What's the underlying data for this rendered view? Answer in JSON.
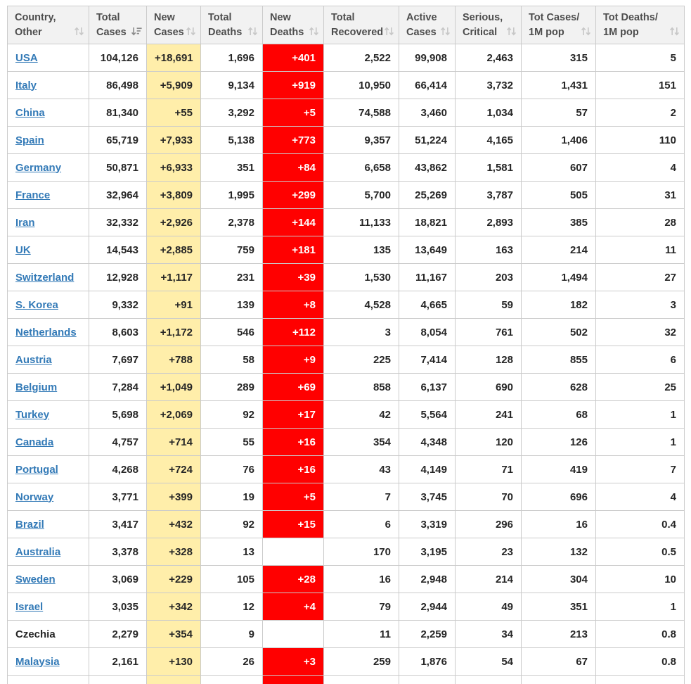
{
  "colors": {
    "new_cases_bg": "#FFEEAA",
    "new_deaths_bg": "#FF0000",
    "new_deaths_text": "#FFFFFF",
    "link": "#337AB7",
    "header_bg": "#F2F2F2",
    "header_text": "#4D4D4D",
    "body_text": "#262626",
    "border": "#CBCBCB"
  },
  "table": {
    "columns": [
      {
        "id": "country",
        "line1": "Country,",
        "line2": "Other",
        "sort": "none",
        "align": "left"
      },
      {
        "id": "total_cases",
        "line1": "Total",
        "line2": "Cases",
        "sort": "desc",
        "align": "right"
      },
      {
        "id": "new_cases",
        "line1": "New",
        "line2": "Cases",
        "sort": "none",
        "align": "right"
      },
      {
        "id": "total_deaths",
        "line1": "Total",
        "line2": "Deaths",
        "sort": "none",
        "align": "right"
      },
      {
        "id": "new_deaths",
        "line1": "New",
        "line2": "Deaths",
        "sort": "none",
        "align": "right"
      },
      {
        "id": "total_recovered",
        "line1": "Total",
        "line2": "Recovered",
        "sort": "none",
        "align": "right"
      },
      {
        "id": "active_cases",
        "line1": "Active",
        "line2": "Cases",
        "sort": "none",
        "align": "right"
      },
      {
        "id": "serious_critical",
        "line1": "Serious,",
        "line2": "Critical",
        "sort": "none",
        "align": "right"
      },
      {
        "id": "cases_per_1m",
        "line1": "Tot Cases/",
        "line2": "1M pop",
        "sort": "none",
        "align": "right"
      },
      {
        "id": "deaths_per_1m",
        "line1": "Tot Deaths/",
        "line2": "1M pop",
        "sort": "none",
        "align": "right"
      }
    ],
    "rows": [
      {
        "country": "USA",
        "is_link": true,
        "total_cases": "104,126",
        "new_cases": "+18,691",
        "total_deaths": "1,696",
        "new_deaths": "+401",
        "total_recovered": "2,522",
        "active_cases": "99,908",
        "serious_critical": "2,463",
        "cases_per_1m": "315",
        "deaths_per_1m": "5"
      },
      {
        "country": "Italy",
        "is_link": true,
        "total_cases": "86,498",
        "new_cases": "+5,909",
        "total_deaths": "9,134",
        "new_deaths": "+919",
        "total_recovered": "10,950",
        "active_cases": "66,414",
        "serious_critical": "3,732",
        "cases_per_1m": "1,431",
        "deaths_per_1m": "151"
      },
      {
        "country": "China",
        "is_link": true,
        "total_cases": "81,340",
        "new_cases": "+55",
        "total_deaths": "3,292",
        "new_deaths": "+5",
        "total_recovered": "74,588",
        "active_cases": "3,460",
        "serious_critical": "1,034",
        "cases_per_1m": "57",
        "deaths_per_1m": "2"
      },
      {
        "country": "Spain",
        "is_link": true,
        "total_cases": "65,719",
        "new_cases": "+7,933",
        "total_deaths": "5,138",
        "new_deaths": "+773",
        "total_recovered": "9,357",
        "active_cases": "51,224",
        "serious_critical": "4,165",
        "cases_per_1m": "1,406",
        "deaths_per_1m": "110"
      },
      {
        "country": "Germany",
        "is_link": true,
        "total_cases": "50,871",
        "new_cases": "+6,933",
        "total_deaths": "351",
        "new_deaths": "+84",
        "total_recovered": "6,658",
        "active_cases": "43,862",
        "serious_critical": "1,581",
        "cases_per_1m": "607",
        "deaths_per_1m": "4"
      },
      {
        "country": "France",
        "is_link": true,
        "total_cases": "32,964",
        "new_cases": "+3,809",
        "total_deaths": "1,995",
        "new_deaths": "+299",
        "total_recovered": "5,700",
        "active_cases": "25,269",
        "serious_critical": "3,787",
        "cases_per_1m": "505",
        "deaths_per_1m": "31"
      },
      {
        "country": "Iran",
        "is_link": true,
        "total_cases": "32,332",
        "new_cases": "+2,926",
        "total_deaths": "2,378",
        "new_deaths": "+144",
        "total_recovered": "11,133",
        "active_cases": "18,821",
        "serious_critical": "2,893",
        "cases_per_1m": "385",
        "deaths_per_1m": "28"
      },
      {
        "country": "UK",
        "is_link": true,
        "total_cases": "14,543",
        "new_cases": "+2,885",
        "total_deaths": "759",
        "new_deaths": "+181",
        "total_recovered": "135",
        "active_cases": "13,649",
        "serious_critical": "163",
        "cases_per_1m": "214",
        "deaths_per_1m": "11"
      },
      {
        "country": "Switzerland",
        "is_link": true,
        "total_cases": "12,928",
        "new_cases": "+1,117",
        "total_deaths": "231",
        "new_deaths": "+39",
        "total_recovered": "1,530",
        "active_cases": "11,167",
        "serious_critical": "203",
        "cases_per_1m": "1,494",
        "deaths_per_1m": "27"
      },
      {
        "country": "S. Korea",
        "is_link": true,
        "total_cases": "9,332",
        "new_cases": "+91",
        "total_deaths": "139",
        "new_deaths": "+8",
        "total_recovered": "4,528",
        "active_cases": "4,665",
        "serious_critical": "59",
        "cases_per_1m": "182",
        "deaths_per_1m": "3"
      },
      {
        "country": "Netherlands",
        "is_link": true,
        "total_cases": "8,603",
        "new_cases": "+1,172",
        "total_deaths": "546",
        "new_deaths": "+112",
        "total_recovered": "3",
        "active_cases": "8,054",
        "serious_critical": "761",
        "cases_per_1m": "502",
        "deaths_per_1m": "32"
      },
      {
        "country": "Austria",
        "is_link": true,
        "total_cases": "7,697",
        "new_cases": "+788",
        "total_deaths": "58",
        "new_deaths": "+9",
        "total_recovered": "225",
        "active_cases": "7,414",
        "serious_critical": "128",
        "cases_per_1m": "855",
        "deaths_per_1m": "6"
      },
      {
        "country": "Belgium",
        "is_link": true,
        "total_cases": "7,284",
        "new_cases": "+1,049",
        "total_deaths": "289",
        "new_deaths": "+69",
        "total_recovered": "858",
        "active_cases": "6,137",
        "serious_critical": "690",
        "cases_per_1m": "628",
        "deaths_per_1m": "25"
      },
      {
        "country": "Turkey",
        "is_link": true,
        "total_cases": "5,698",
        "new_cases": "+2,069",
        "total_deaths": "92",
        "new_deaths": "+17",
        "total_recovered": "42",
        "active_cases": "5,564",
        "serious_critical": "241",
        "cases_per_1m": "68",
        "deaths_per_1m": "1"
      },
      {
        "country": "Canada",
        "is_link": true,
        "total_cases": "4,757",
        "new_cases": "+714",
        "total_deaths": "55",
        "new_deaths": "+16",
        "total_recovered": "354",
        "active_cases": "4,348",
        "serious_critical": "120",
        "cases_per_1m": "126",
        "deaths_per_1m": "1"
      },
      {
        "country": "Portugal",
        "is_link": true,
        "total_cases": "4,268",
        "new_cases": "+724",
        "total_deaths": "76",
        "new_deaths": "+16",
        "total_recovered": "43",
        "active_cases": "4,149",
        "serious_critical": "71",
        "cases_per_1m": "419",
        "deaths_per_1m": "7"
      },
      {
        "country": "Norway",
        "is_link": true,
        "total_cases": "3,771",
        "new_cases": "+399",
        "total_deaths": "19",
        "new_deaths": "+5",
        "total_recovered": "7",
        "active_cases": "3,745",
        "serious_critical": "70",
        "cases_per_1m": "696",
        "deaths_per_1m": "4"
      },
      {
        "country": "Brazil",
        "is_link": true,
        "total_cases": "3,417",
        "new_cases": "+432",
        "total_deaths": "92",
        "new_deaths": "+15",
        "total_recovered": "6",
        "active_cases": "3,319",
        "serious_critical": "296",
        "cases_per_1m": "16",
        "deaths_per_1m": "0.4"
      },
      {
        "country": "Australia",
        "is_link": true,
        "total_cases": "3,378",
        "new_cases": "+328",
        "total_deaths": "13",
        "new_deaths": "",
        "total_recovered": "170",
        "active_cases": "3,195",
        "serious_critical": "23",
        "cases_per_1m": "132",
        "deaths_per_1m": "0.5"
      },
      {
        "country": "Sweden",
        "is_link": true,
        "total_cases": "3,069",
        "new_cases": "+229",
        "total_deaths": "105",
        "new_deaths": "+28",
        "total_recovered": "16",
        "active_cases": "2,948",
        "serious_critical": "214",
        "cases_per_1m": "304",
        "deaths_per_1m": "10"
      },
      {
        "country": "Israel",
        "is_link": true,
        "total_cases": "3,035",
        "new_cases": "+342",
        "total_deaths": "12",
        "new_deaths": "+4",
        "total_recovered": "79",
        "active_cases": "2,944",
        "serious_critical": "49",
        "cases_per_1m": "351",
        "deaths_per_1m": "1"
      },
      {
        "country": "Czechia",
        "is_link": false,
        "total_cases": "2,279",
        "new_cases": "+354",
        "total_deaths": "9",
        "new_deaths": "",
        "total_recovered": "11",
        "active_cases": "2,259",
        "serious_critical": "34",
        "cases_per_1m": "213",
        "deaths_per_1m": "0.8"
      },
      {
        "country": "Malaysia",
        "is_link": true,
        "total_cases": "2,161",
        "new_cases": "+130",
        "total_deaths": "26",
        "new_deaths": "+3",
        "total_recovered": "259",
        "active_cases": "1,876",
        "serious_critical": "54",
        "cases_per_1m": "67",
        "deaths_per_1m": "0.8"
      },
      {
        "country": "",
        "is_link": false,
        "partial": true,
        "total_cases": "",
        "new_cases": "",
        "total_deaths": "",
        "new_deaths": "",
        "total_recovered": "",
        "active_cases": "",
        "serious_critical": "",
        "cases_per_1m": "",
        "deaths_per_1m": ""
      }
    ]
  }
}
